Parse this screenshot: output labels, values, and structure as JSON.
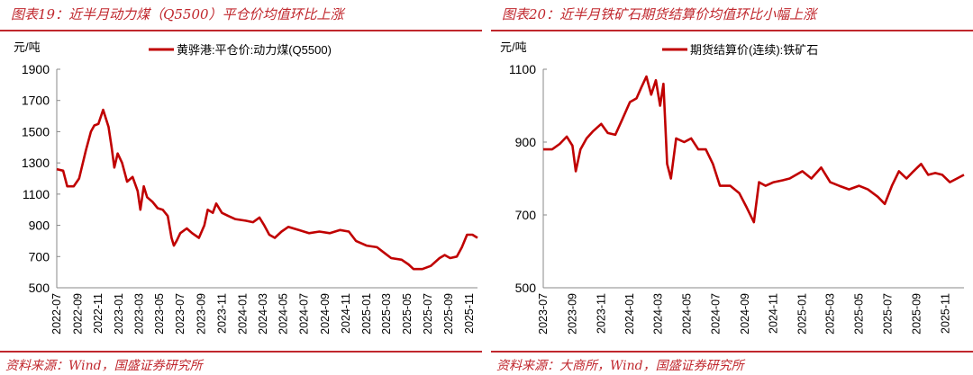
{
  "chart_data": [
    {
      "type": "line",
      "title": "图表19：近半月动力煤（Q5500）平仓价均值环比上涨",
      "source": "资料来源：Wind，国盛证券研究所",
      "ylabel": "元/吨",
      "ylim": [
        500,
        1900
      ],
      "yticks": [
        1900,
        1700,
        1500,
        1300,
        1100,
        900,
        700,
        500
      ],
      "xlim": [
        "2022-07-01",
        "2025-11-25"
      ],
      "xticks": [
        "2022-07",
        "2022-09",
        "2022-11",
        "2023-01",
        "2023-03",
        "2023-05",
        "2023-07",
        "2023-09",
        "2023-11",
        "2024-01",
        "2024-03",
        "2024-05",
        "2024-07",
        "2024-09",
        "2024-11",
        "2025-01",
        "2025-03",
        "2025-05",
        "2025-07",
        "2025-09",
        "2025-11"
      ],
      "legend_position": "top",
      "grid": false,
      "series": [
        {
          "name": "黄骅港:平仓价:动力煤(Q5500)",
          "color": "#c00000",
          "points": [
            [
              "2022-07-01",
              1260
            ],
            [
              "2022-07-20",
              1250
            ],
            [
              "2022-08-01",
              1150
            ],
            [
              "2022-08-20",
              1150
            ],
            [
              "2022-09-05",
              1200
            ],
            [
              "2022-09-25",
              1380
            ],
            [
              "2022-10-10",
              1500
            ],
            [
              "2022-10-20",
              1540
            ],
            [
              "2022-11-01",
              1550
            ],
            [
              "2022-11-15",
              1640
            ],
            [
              "2022-12-01",
              1530
            ],
            [
              "2022-12-10",
              1400
            ],
            [
              "2022-12-18",
              1270
            ],
            [
              "2022-12-28",
              1360
            ],
            [
              "2023-01-10",
              1300
            ],
            [
              "2023-01-25",
              1180
            ],
            [
              "2023-02-10",
              1210
            ],
            [
              "2023-02-25",
              1120
            ],
            [
              "2023-03-05",
              1000
            ],
            [
              "2023-03-15",
              1150
            ],
            [
              "2023-03-25",
              1080
            ],
            [
              "2023-04-10",
              1050
            ],
            [
              "2023-04-25",
              1010
            ],
            [
              "2023-05-10",
              1000
            ],
            [
              "2023-05-25",
              960
            ],
            [
              "2023-06-05",
              820
            ],
            [
              "2023-06-12",
              770
            ],
            [
              "2023-06-20",
              800
            ],
            [
              "2023-07-01",
              850
            ],
            [
              "2023-07-20",
              880
            ],
            [
              "2023-08-05",
              850
            ],
            [
              "2023-08-25",
              820
            ],
            [
              "2023-09-10",
              900
            ],
            [
              "2023-09-20",
              1000
            ],
            [
              "2023-10-05",
              980
            ],
            [
              "2023-10-15",
              1040
            ],
            [
              "2023-11-01",
              980
            ],
            [
              "2023-11-20",
              960
            ],
            [
              "2023-12-10",
              940
            ],
            [
              "2024-01-10",
              930
            ],
            [
              "2024-02-01",
              920
            ],
            [
              "2024-02-20",
              950
            ],
            [
              "2024-03-05",
              900
            ],
            [
              "2024-03-20",
              840
            ],
            [
              "2024-04-05",
              820
            ],
            [
              "2024-04-25",
              860
            ],
            [
              "2024-05-15",
              890
            ],
            [
              "2024-06-15",
              870
            ],
            [
              "2024-07-15",
              850
            ],
            [
              "2024-08-15",
              860
            ],
            [
              "2024-09-15",
              850
            ],
            [
              "2024-10-15",
              870
            ],
            [
              "2024-11-10",
              860
            ],
            [
              "2024-12-01",
              800
            ],
            [
              "2025-01-01",
              770
            ],
            [
              "2025-02-01",
              760
            ],
            [
              "2025-02-25",
              720
            ],
            [
              "2025-03-15",
              690
            ],
            [
              "2025-04-15",
              680
            ],
            [
              "2025-05-05",
              650
            ],
            [
              "2025-05-20",
              620
            ],
            [
              "2025-06-15",
              620
            ],
            [
              "2025-07-10",
              640
            ],
            [
              "2025-08-05",
              690
            ],
            [
              "2025-08-20",
              710
            ],
            [
              "2025-09-05",
              690
            ],
            [
              "2025-09-25",
              700
            ],
            [
              "2025-10-10",
              760
            ],
            [
              "2025-10-25",
              840
            ],
            [
              "2025-11-10",
              840
            ],
            [
              "2025-11-25",
              820
            ]
          ]
        }
      ]
    },
    {
      "type": "line",
      "title": "图表20：近半月铁矿石期货结算价均值环比小幅上涨",
      "source": "资料来源：大商所，Wind，国盛证券研究所",
      "ylabel": "元/吨",
      "ylim": [
        500,
        1100
      ],
      "yticks": [
        1100,
        900,
        700,
        500
      ],
      "xlim": [
        "2023-07-01",
        "2025-12-10"
      ],
      "xticks": [
        "2023-07",
        "2023-09",
        "2023-11",
        "2024-01",
        "2024-03",
        "2024-05",
        "2024-07",
        "2024-09",
        "2024-11",
        "2025-01",
        "2025-03",
        "2025-05",
        "2025-07",
        "2025-09",
        "2025-11"
      ],
      "legend_position": "top",
      "grid": false,
      "series": [
        {
          "name": "期货结算价(连续):铁矿石",
          "color": "#c00000",
          "points": [
            [
              "2023-07-01",
              880
            ],
            [
              "2023-07-20",
              880
            ],
            [
              "2023-08-05",
              895
            ],
            [
              "2023-08-20",
              915
            ],
            [
              "2023-09-01",
              890
            ],
            [
              "2023-09-08",
              820
            ],
            [
              "2023-09-18",
              880
            ],
            [
              "2023-10-01",
              910
            ],
            [
              "2023-10-15",
              930
            ],
            [
              "2023-11-01",
              950
            ],
            [
              "2023-11-15",
              925
            ],
            [
              "2023-12-01",
              920
            ],
            [
              "2023-12-15",
              960
            ],
            [
              "2024-01-01",
              1010
            ],
            [
              "2024-01-15",
              1020
            ],
            [
              "2024-01-25",
              1050
            ],
            [
              "2024-02-05",
              1080
            ],
            [
              "2024-02-15",
              1030
            ],
            [
              "2024-02-25",
              1070
            ],
            [
              "2024-03-05",
              1000
            ],
            [
              "2024-03-12",
              1060
            ],
            [
              "2024-03-20",
              840
            ],
            [
              "2024-03-28",
              800
            ],
            [
              "2024-04-08",
              910
            ],
            [
              "2024-04-25",
              900
            ],
            [
              "2024-05-10",
              910
            ],
            [
              "2024-05-25",
              880
            ],
            [
              "2024-06-10",
              880
            ],
            [
              "2024-06-25",
              840
            ],
            [
              "2024-07-10",
              780
            ],
            [
              "2024-08-01",
              780
            ],
            [
              "2024-08-20",
              760
            ],
            [
              "2024-09-05",
              720
            ],
            [
              "2024-09-20",
              680
            ],
            [
              "2024-10-01",
              790
            ],
            [
              "2024-10-15",
              780
            ],
            [
              "2024-11-01",
              790
            ],
            [
              "2024-11-20",
              795
            ],
            [
              "2024-12-05",
              800
            ],
            [
              "2025-01-01",
              820
            ],
            [
              "2025-01-20",
              800
            ],
            [
              "2025-02-10",
              830
            ],
            [
              "2025-03-01",
              790
            ],
            [
              "2025-03-20",
              780
            ],
            [
              "2025-04-10",
              770
            ],
            [
              "2025-05-01",
              780
            ],
            [
              "2025-05-20",
              770
            ],
            [
              "2025-06-10",
              750
            ],
            [
              "2025-06-25",
              730
            ],
            [
              "2025-07-10",
              780
            ],
            [
              "2025-07-25",
              820
            ],
            [
              "2025-08-10",
              800
            ],
            [
              "2025-08-25",
              820
            ],
            [
              "2025-09-10",
              840
            ],
            [
              "2025-09-25",
              810
            ],
            [
              "2025-10-10",
              815
            ],
            [
              "2025-10-25",
              810
            ],
            [
              "2025-11-10",
              790
            ],
            [
              "2025-11-25",
              800
            ],
            [
              "2025-12-10",
              810
            ]
          ]
        }
      ]
    }
  ]
}
